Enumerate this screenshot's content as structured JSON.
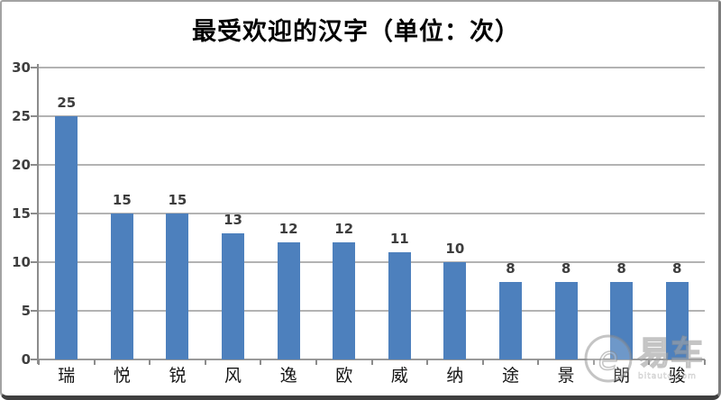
{
  "title": "最受欢迎的汉字（单位：次）",
  "chart_data": {
    "type": "bar",
    "title": "最受欢迎的汉字（单位：次）",
    "categories": [
      "瑞",
      "悦",
      "锐",
      "风",
      "逸",
      "欧",
      "威",
      "纳",
      "途",
      "景",
      "朗",
      "骏"
    ],
    "values": [
      25,
      15,
      15,
      13,
      12,
      12,
      11,
      10,
      8,
      8,
      8,
      8
    ],
    "xlabel": "",
    "ylabel": "",
    "ylim": [
      0,
      30
    ],
    "yticks": [
      30,
      25,
      20,
      15,
      10,
      5,
      0
    ],
    "grid": true,
    "legend": false,
    "data_labels": true,
    "bar_color": "#4d80bd",
    "gridline_color": "#b3b3b3",
    "axis_color": "#8c8c8c",
    "label_color": "#3d3d3d"
  },
  "watermark": {
    "logo_icon": "bitauto-e-swirl-logo",
    "text": "易车",
    "subtext": "bitauto.com"
  }
}
